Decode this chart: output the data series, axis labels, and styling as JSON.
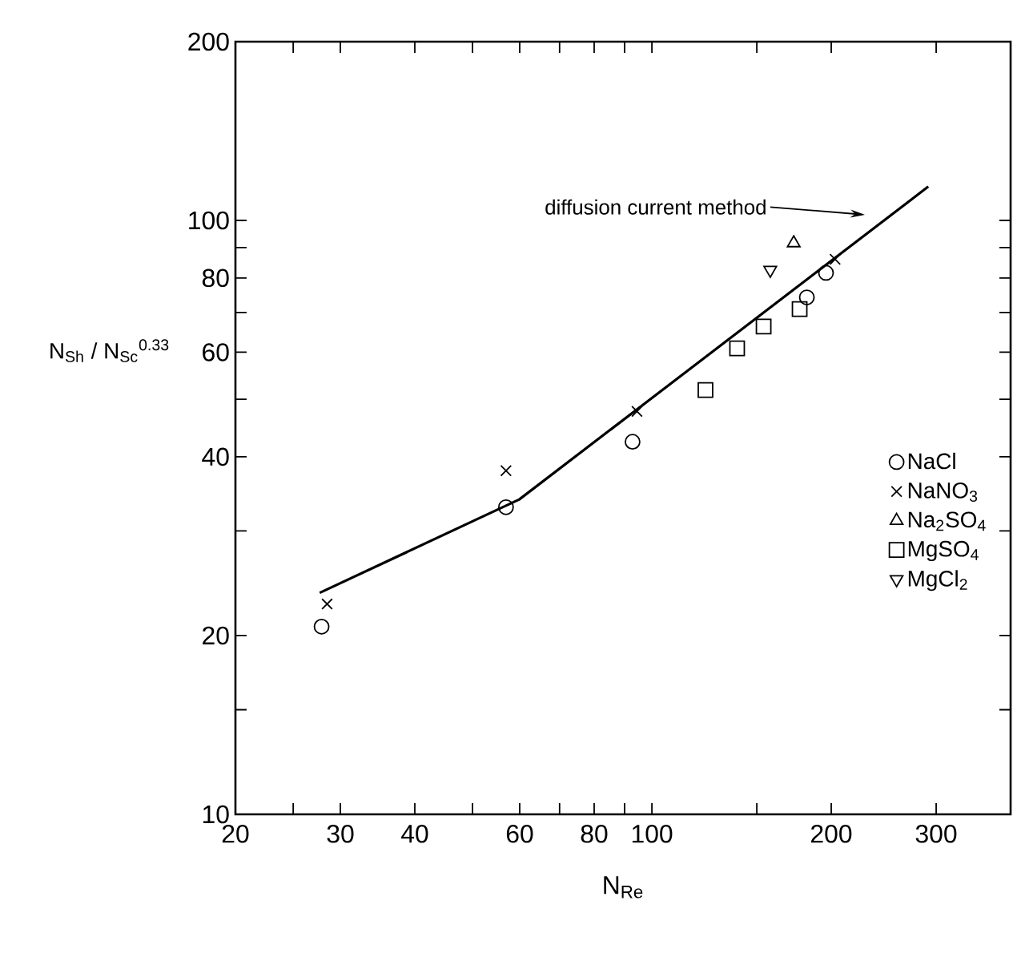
{
  "chart_data": {
    "type": "scatter",
    "xlabel": "N$_{Re}$",
    "ylabel": "N$_{Sh}$ / N$_{Sc}$$^{0.33}$",
    "log": "xy",
    "grid": false,
    "legend": "right",
    "xlim": [
      20,
      400
    ],
    "ylim": [
      10,
      200
    ],
    "xticks": [
      20,
      {
        "value": 25,
        "label": null
      },
      30,
      40,
      {
        "value": 50,
        "label": null
      },
      60,
      {
        "value": 70,
        "label": null
      },
      80,
      {
        "value": 90,
        "label": null
      },
      100,
      {
        "value": 150,
        "label": null
      },
      200,
      300
    ],
    "yticks": [
      10,
      {
        "value": 15,
        "label": null
      },
      20,
      {
        "value": 30,
        "label": null
      },
      40,
      {
        "value": 50,
        "label": null
      },
      60,
      {
        "value": 70,
        "label": null
      },
      80,
      {
        "value": 90,
        "label": null
      },
      100,
      200
    ],
    "annotations": [
      "diffusion current method"
    ],
    "series": [
      {
        "type": "line",
        "color": "#000000",
        "marker": "none",
        "line_style": "solid",
        "x": [
          27.7,
          59.9,
          291
        ],
        "values": [
          23.6,
          33.9,
          114
        ]
      },
      {
        "name": "NaCl",
        "color": "#000000",
        "marker": "circle",
        "x": [
          27.9,
          56.9,
          92.8,
          182,
          196
        ],
        "values": [
          20.7,
          32.9,
          42.4,
          74.2,
          81.6
        ]
      },
      {
        "name": "NaNO$_{3}$",
        "color": "#000000",
        "marker": "cross",
        "x": [
          28.5,
          56.9,
          94.4,
          203
        ],
        "values": [
          22.6,
          37.9,
          47.7,
          86
        ]
      },
      {
        "name": "Na$_{2}$SO$_{4}$",
        "color": "#000000",
        "marker": "triangle",
        "x": [
          173
        ],
        "values": [
          91.6
        ]
      },
      {
        "name": "MgSO$_{4}$",
        "color": "#000000",
        "marker": "square",
        "x": [
          123,
          139,
          154,
          177
        ],
        "values": [
          51.8,
          60.9,
          66.3,
          70.9
        ]
      },
      {
        "name": "MgCl$_{2}$",
        "color": "#000000",
        "marker": "triangle-down",
        "x": [
          158
        ],
        "values": [
          82.5
        ]
      }
    ]
  }
}
